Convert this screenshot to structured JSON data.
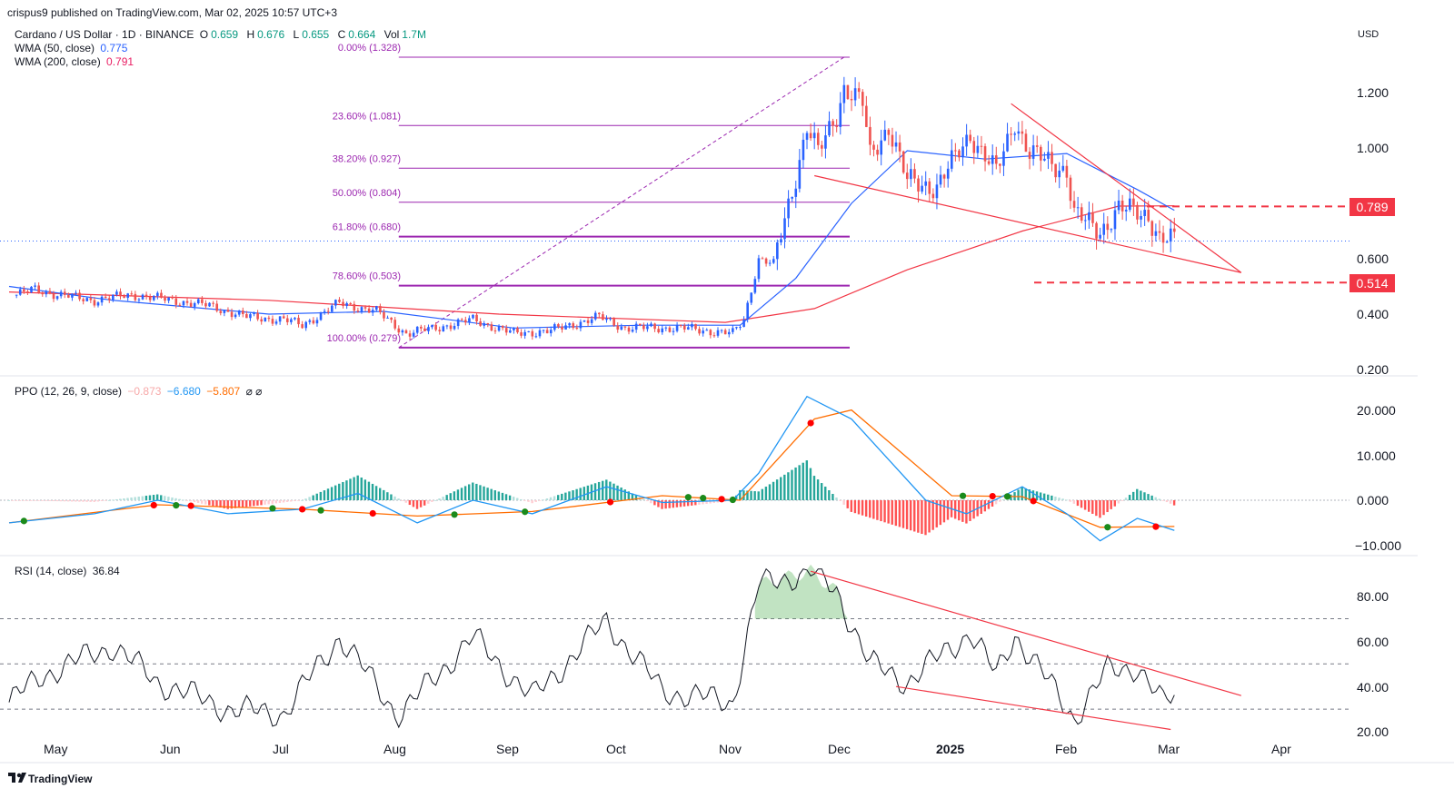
{
  "publish": {
    "text": "crispus9 published on TradingView.com, Mar 02, 2025 10:57 UTC+3"
  },
  "currency": "USD",
  "symbol": {
    "title": "Cardano / US Dollar · 1D · BINANCE",
    "o_label": "O",
    "o": "0.659",
    "h_label": "H",
    "h": "0.676",
    "l_label": "L",
    "l": "0.655",
    "c_label": "C",
    "c": "0.664",
    "vol_label": "Vol",
    "vol": "1.7M"
  },
  "wma50": {
    "label": "WMA (50, close)",
    "value": "0.775",
    "color": "#2962ff"
  },
  "wma200": {
    "label": "WMA (200, close)",
    "value": "0.791",
    "color": "#e91e63"
  },
  "ppo_header": {
    "label": "PPO (12, 26, 9, close)",
    "v1": "−0.873",
    "v2": "−6.680",
    "v3": "−5.807",
    "icons": "⌀ ⌀"
  },
  "rsi_header": {
    "label": "RSI (14, close)",
    "value": "36.84"
  },
  "price_axis": [
    "1.200",
    "1.000",
    "0.600",
    "0.400",
    "0.200"
  ],
  "ppo_axis": [
    "20.000",
    "10.000",
    "0.000",
    "−10.000"
  ],
  "rsi_axis": [
    "80.00",
    "60.00",
    "40.00",
    "20.00"
  ],
  "time_axis": [
    "May",
    "Jun",
    "Jul",
    "Aug",
    "Sep",
    "Oct",
    "Nov",
    "Dec",
    "2025",
    "Feb",
    "Mar",
    "Apr"
  ],
  "price_tags": [
    {
      "label": "0.789",
      "value": 0.789
    },
    {
      "label": "0.514",
      "value": 0.514
    }
  ],
  "fib_levels": [
    {
      "label": "0.00% (1.328)",
      "value": 1.328
    },
    {
      "label": "23.60% (1.081)",
      "value": 1.081
    },
    {
      "label": "38.20% (0.927)",
      "value": 0.927
    },
    {
      "label": "50.00% (0.804)",
      "value": 0.804
    },
    {
      "label": "61.80% (0.680)",
      "value": 0.68
    },
    {
      "label": "78.60% (0.503)",
      "value": 0.503
    },
    {
      "label": "100.00% (0.279)",
      "value": 0.279
    }
  ],
  "footer": {
    "brand": "TradingView"
  },
  "colors": {
    "up": "#26a69a",
    "down": "#ef5350",
    "fib": "#9c27b0",
    "trend": "#f23645",
    "ppo": "#2196f3",
    "signal": "#ff6d00",
    "rsi": "#131722"
  },
  "chart_data": {
    "type": "candlestick",
    "x_domain": [
      "2024-04-22",
      "2025-04-15"
    ],
    "y_axis": {
      "scale": "linear",
      "ylim": [
        0.16,
        1.42
      ]
    },
    "close_path": [
      {
        "t": "2024-04-24",
        "v": 0.47
      },
      {
        "t": "2024-04-29",
        "v": 0.49
      },
      {
        "t": "2024-05-05",
        "v": 0.47
      },
      {
        "t": "2024-05-15",
        "v": 0.45
      },
      {
        "t": "2024-05-25",
        "v": 0.47
      },
      {
        "t": "2024-06-05",
        "v": 0.45
      },
      {
        "t": "2024-06-15",
        "v": 0.43
      },
      {
        "t": "2024-06-25",
        "v": 0.39
      },
      {
        "t": "2024-07-05",
        "v": 0.38
      },
      {
        "t": "2024-07-10",
        "v": 0.36
      },
      {
        "t": "2024-07-20",
        "v": 0.44
      },
      {
        "t": "2024-07-30",
        "v": 0.41
      },
      {
        "t": "2024-08-07",
        "v": 0.33
      },
      {
        "t": "2024-08-15",
        "v": 0.35
      },
      {
        "t": "2024-08-25",
        "v": 0.38
      },
      {
        "t": "2024-09-05",
        "v": 0.33
      },
      {
        "t": "2024-09-15",
        "v": 0.34
      },
      {
        "t": "2024-09-28",
        "v": 0.39
      },
      {
        "t": "2024-10-05",
        "v": 0.35
      },
      {
        "t": "2024-10-20",
        "v": 0.35
      },
      {
        "t": "2024-11-03",
        "v": 0.33
      },
      {
        "t": "2024-11-06",
        "v": 0.38
      },
      {
        "t": "2024-11-10",
        "v": 0.6
      },
      {
        "t": "2024-11-14",
        "v": 0.58
      },
      {
        "t": "2024-11-17",
        "v": 0.74
      },
      {
        "t": "2024-11-20",
        "v": 0.9
      },
      {
        "t": "2024-11-23",
        "v": 1.08
      },
      {
        "t": "2024-11-26",
        "v": 0.98
      },
      {
        "t": "2024-12-01",
        "v": 1.12
      },
      {
        "t": "2024-12-03",
        "v": 1.22
      },
      {
        "t": "2024-12-08",
        "v": 1.16
      },
      {
        "t": "2024-12-10",
        "v": 0.97
      },
      {
        "t": "2024-12-15",
        "v": 1.08
      },
      {
        "t": "2024-12-20",
        "v": 0.88
      },
      {
        "t": "2024-12-28",
        "v": 0.86
      },
      {
        "t": "2025-01-06",
        "v": 1.05
      },
      {
        "t": "2025-01-13",
        "v": 0.91
      },
      {
        "t": "2025-01-18",
        "v": 1.1
      },
      {
        "t": "2025-01-22",
        "v": 0.98
      },
      {
        "t": "2025-02-01",
        "v": 0.92
      },
      {
        "t": "2025-02-03",
        "v": 0.76
      },
      {
        "t": "2025-02-10",
        "v": 0.7
      },
      {
        "t": "2025-02-15",
        "v": 0.78
      },
      {
        "t": "2025-02-23",
        "v": 0.76
      },
      {
        "t": "2025-02-26",
        "v": 0.67
      },
      {
        "t": "2025-03-02",
        "v": 0.664
      }
    ],
    "wma50_path": [
      {
        "t": "2024-04-22",
        "v": 0.5
      },
      {
        "t": "2024-05-20",
        "v": 0.45
      },
      {
        "t": "2024-07-01",
        "v": 0.4
      },
      {
        "t": "2024-08-01",
        "v": 0.41
      },
      {
        "t": "2024-09-05",
        "v": 0.35
      },
      {
        "t": "2024-10-10",
        "v": 0.36
      },
      {
        "t": "2024-11-05",
        "v": 0.36
      },
      {
        "t": "2024-11-20",
        "v": 0.53
      },
      {
        "t": "2024-12-05",
        "v": 0.8
      },
      {
        "t": "2024-12-20",
        "v": 0.99
      },
      {
        "t": "2025-01-10",
        "v": 0.96
      },
      {
        "t": "2025-02-01",
        "v": 0.98
      },
      {
        "t": "2025-02-20",
        "v": 0.85
      },
      {
        "t": "2025-03-02",
        "v": 0.775
      }
    ],
    "wma200_path": [
      {
        "t": "2024-04-22",
        "v": 0.48
      },
      {
        "t": "2024-07-01",
        "v": 0.45
      },
      {
        "t": "2024-09-01",
        "v": 0.4
      },
      {
        "t": "2024-11-01",
        "v": 0.37
      },
      {
        "t": "2024-11-25",
        "v": 0.42
      },
      {
        "t": "2024-12-20",
        "v": 0.56
      },
      {
        "t": "2025-01-20",
        "v": 0.7
      },
      {
        "t": "2025-02-15",
        "v": 0.79
      },
      {
        "t": "2025-03-02",
        "v": 0.791
      }
    ],
    "fib_anchor": {
      "from": {
        "t": "2024-08-05",
        "v": 0.279
      },
      "to": {
        "t": "2024-12-03",
        "v": 1.328
      }
    },
    "trendlines": [
      {
        "from": {
          "t": "2025-01-17",
          "v": 1.16
        },
        "to": {
          "t": "2025-03-20",
          "v": 0.55
        }
      },
      {
        "from": {
          "t": "2024-11-25",
          "v": 0.9
        },
        "to": {
          "t": "2025-03-20",
          "v": 0.55
        }
      }
    ],
    "horizontal_levels": [
      0.789,
      0.514
    ],
    "ppo": {
      "ylim": [
        -14,
        28
      ],
      "ppo_path": [
        {
          "t": "2024-04-22",
          "v": -5
        },
        {
          "t": "2024-05-15",
          "v": -3
        },
        {
          "t": "2024-06-01",
          "v": 0
        },
        {
          "t": "2024-06-20",
          "v": -3
        },
        {
          "t": "2024-07-10",
          "v": -2
        },
        {
          "t": "2024-07-25",
          "v": 1.5
        },
        {
          "t": "2024-08-10",
          "v": -5
        },
        {
          "t": "2024-08-25",
          "v": 0
        },
        {
          "t": "2024-09-10",
          "v": -3
        },
        {
          "t": "2024-09-30",
          "v": 3
        },
        {
          "t": "2024-10-15",
          "v": -0.5
        },
        {
          "t": "2024-11-03",
          "v": 0
        },
        {
          "t": "2024-11-10",
          "v": 6
        },
        {
          "t": "2024-11-23",
          "v": 23
        },
        {
          "t": "2024-12-05",
          "v": 18
        },
        {
          "t": "2024-12-25",
          "v": 0
        },
        {
          "t": "2025-01-05",
          "v": -3
        },
        {
          "t": "2025-01-20",
          "v": 3
        },
        {
          "t": "2025-02-01",
          "v": -3
        },
        {
          "t": "2025-02-10",
          "v": -9
        },
        {
          "t": "2025-02-20",
          "v": -4
        },
        {
          "t": "2025-03-02",
          "v": -6.68
        }
      ],
      "signal_path": [
        {
          "t": "2024-04-22",
          "v": -5
        },
        {
          "t": "2024-06-01",
          "v": -1
        },
        {
          "t": "2024-07-10",
          "v": -2
        },
        {
          "t": "2024-08-10",
          "v": -3.5
        },
        {
          "t": "2024-09-10",
          "v": -2.5
        },
        {
          "t": "2024-10-15",
          "v": 1
        },
        {
          "t": "2024-11-05",
          "v": 0
        },
        {
          "t": "2024-11-25",
          "v": 18
        },
        {
          "t": "2024-12-05",
          "v": 20
        },
        {
          "t": "2025-01-01",
          "v": 1
        },
        {
          "t": "2025-01-20",
          "v": 0.8
        },
        {
          "t": "2025-02-10",
          "v": -6
        },
        {
          "t": "2025-03-02",
          "v": -5.807
        }
      ]
    },
    "rsi": {
      "ylim": [
        18,
        95
      ],
      "levels": [
        70,
        50,
        30
      ],
      "path": [
        {
          "t": "2024-04-22",
          "v": 33
        },
        {
          "t": "2024-05-01",
          "v": 45
        },
        {
          "t": "2024-05-20",
          "v": 58
        },
        {
          "t": "2024-06-01",
          "v": 42
        },
        {
          "t": "2024-06-20",
          "v": 30
        },
        {
          "t": "2024-07-05",
          "v": 28
        },
        {
          "t": "2024-07-20",
          "v": 62
        },
        {
          "t": "2024-08-05",
          "v": 27
        },
        {
          "t": "2024-08-25",
          "v": 62
        },
        {
          "t": "2024-09-10",
          "v": 35
        },
        {
          "t": "2024-09-30",
          "v": 69
        },
        {
          "t": "2024-10-15",
          "v": 38
        },
        {
          "t": "2024-11-03",
          "v": 33
        },
        {
          "t": "2024-11-10",
          "v": 85
        },
        {
          "t": "2024-11-24",
          "v": 91
        },
        {
          "t": "2024-12-01",
          "v": 82
        },
        {
          "t": "2024-12-10",
          "v": 50
        },
        {
          "t": "2024-12-20",
          "v": 42
        },
        {
          "t": "2025-01-06",
          "v": 64
        },
        {
          "t": "2025-01-13",
          "v": 45
        },
        {
          "t": "2025-01-18",
          "v": 63
        },
        {
          "t": "2025-02-03",
          "v": 26
        },
        {
          "t": "2025-02-12",
          "v": 47
        },
        {
          "t": "2025-02-20",
          "v": 49
        },
        {
          "t": "2025-02-27",
          "v": 32
        },
        {
          "t": "2025-03-02",
          "v": 36.84
        }
      ]
    }
  }
}
